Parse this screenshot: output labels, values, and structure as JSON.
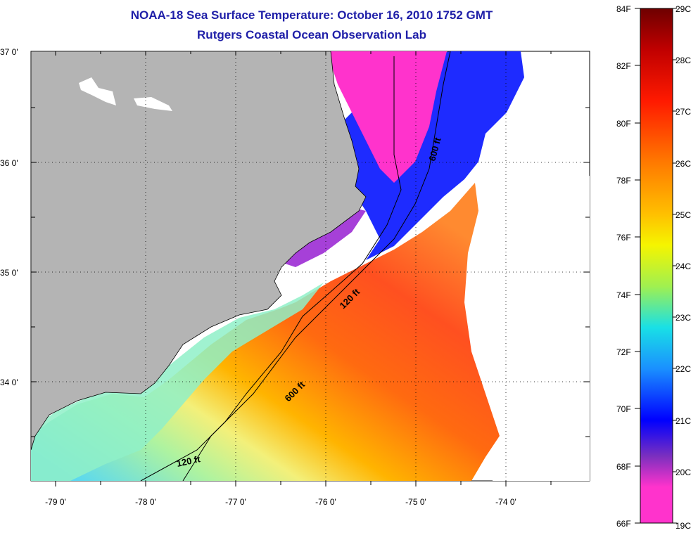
{
  "title": "NOAA-18 Sea Surface Temperature:  October 16, 2010 1752 GMT",
  "subtitle": "Rutgers Coastal Ocean Observation Lab",
  "lat_labels": [
    "37 0'",
    "36 0'",
    "35 0'",
    "34 0'"
  ],
  "lon_labels": [
    "-79 0'",
    "-78 0'",
    "-77 0'",
    "-76 0'",
    "-75 0'",
    "-74 0'"
  ],
  "contours": {
    "c600_north": "600 ft",
    "c120_mid": "120 ft",
    "c600_south": "600 ft",
    "c120_south": "120 ft"
  },
  "colorbar": {
    "f_labels": [
      "84F",
      "82F",
      "80F",
      "78F",
      "76F",
      "74F",
      "72F",
      "70F",
      "68F",
      "66F"
    ],
    "c_labels": [
      "29C",
      "28C",
      "27C",
      "26C",
      "25C",
      "24C",
      "23C",
      "22C",
      "21C",
      "20C",
      "19C"
    ],
    "colors": {
      "top": "#7a0000",
      "red": "#ff1a00",
      "orange": "#ff8c00",
      "yellow": "#f5f500",
      "cyan": "#19e0e6",
      "blue": "#0000ff",
      "purple": "#7b2fbf",
      "magenta": "#ff33cc"
    }
  },
  "map_colors": {
    "land": "#b4b4b4",
    "water_cold": "#ff33cc",
    "water_blue": "#1e2bff"
  }
}
